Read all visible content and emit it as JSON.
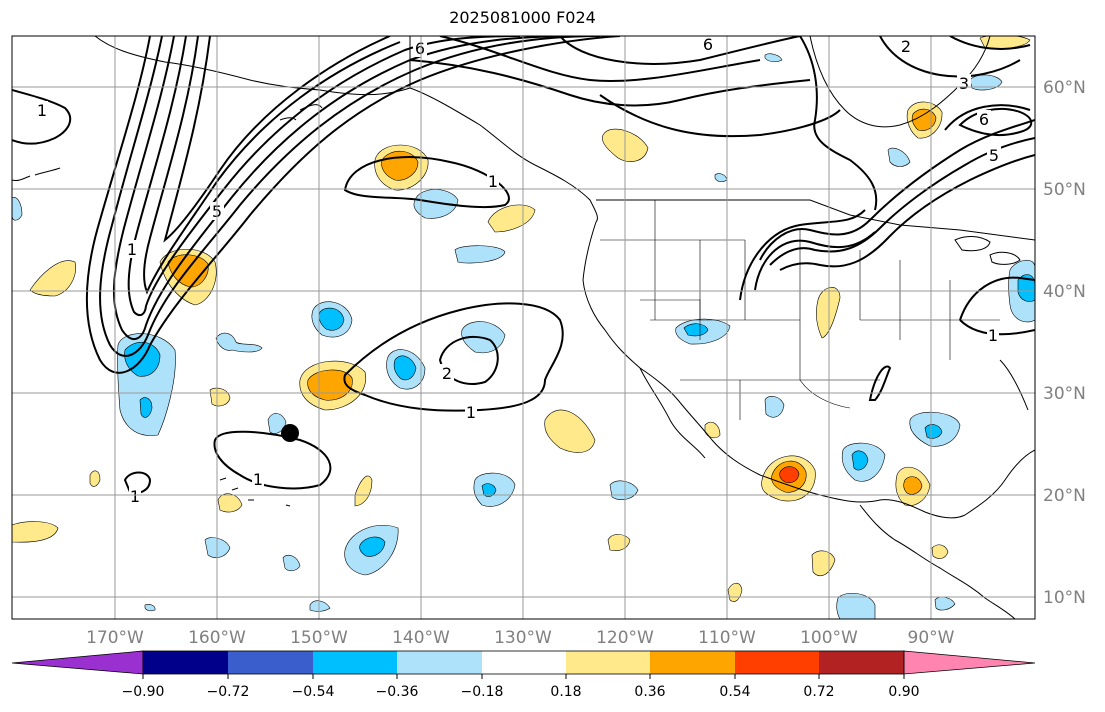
{
  "title": "2025081000 F024",
  "map": {
    "longitude_labels": [
      "170°W",
      "160°W",
      "150°W",
      "140°W",
      "130°W",
      "120°W",
      "110°W",
      "100°W",
      "90°W"
    ],
    "latitude_labels": [
      "60°N",
      "50°N",
      "40°N",
      "30°N",
      "20°N",
      "10°N"
    ],
    "contour_labels": [
      "6",
      "6",
      "2",
      "3",
      "6",
      "5",
      "1",
      "5",
      "1",
      "1",
      "2",
      "1",
      "1",
      "1",
      "1"
    ],
    "marker": "black-dot"
  },
  "colorbar": {
    "ticks": [
      "−0.90",
      "−0.72",
      "−0.54",
      "−0.36",
      "−0.18",
      "0.18",
      "0.36",
      "0.54",
      "0.72",
      "0.90"
    ],
    "colors": [
      "#9b30d0",
      "#00008b",
      "#3a5fcd",
      "#00bfff",
      "#aee2fb",
      "#ffffff",
      "#ffe98a",
      "#ffa500",
      "#ff3f00",
      "#b22222",
      "#ff85b0"
    ]
  }
}
